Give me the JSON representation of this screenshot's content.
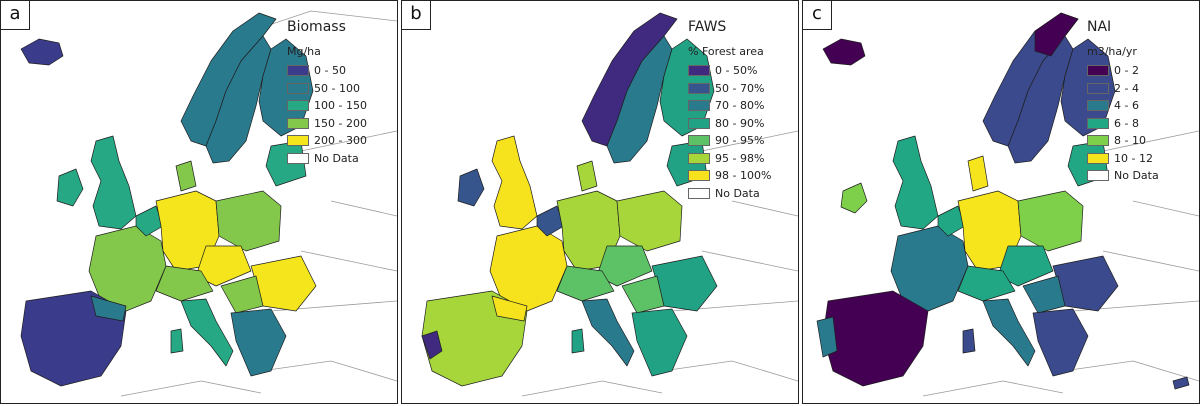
{
  "panels": [
    {
      "letter": "a",
      "title": "Biomass",
      "unit": "Mg/ha",
      "classes": [
        {
          "label": "0 - 50",
          "color": "#3b3b8c"
        },
        {
          "label": "50 - 100",
          "color": "#2a7a8e"
        },
        {
          "label": "100 - 150",
          "color": "#26a884"
        },
        {
          "label": "150 - 200",
          "color": "#83c84b"
        },
        {
          "label": "200 - 300",
          "color": "#f4e51c"
        },
        {
          "label": "No Data",
          "color": "#ffffff"
        }
      ]
    },
    {
      "letter": "b",
      "title": "FAWS",
      "unit": "% Forest area",
      "classes": [
        {
          "label": "0 - 50%",
          "color": "#402a80"
        },
        {
          "label": "50 - 70%",
          "color": "#35558c"
        },
        {
          "label": "70 - 80%",
          "color": "#2a7a8e"
        },
        {
          "label": "80 - 90%",
          "color": "#22a285"
        },
        {
          "label": "90 - 95%",
          "color": "#5dc166"
        },
        {
          "label": "95 - 98%",
          "color": "#a6d63a"
        },
        {
          "label": "98 - 100%",
          "color": "#f6e31e"
        },
        {
          "label": "No Data",
          "color": "#ffffff"
        }
      ]
    },
    {
      "letter": "c",
      "title": "NAI",
      "unit": "m3/ha/yr",
      "classes": [
        {
          "label": "0 - 2",
          "color": "#440154"
        },
        {
          "label": "2 - 4",
          "color": "#3b4a8c"
        },
        {
          "label": "4 - 6",
          "color": "#2a7a8e"
        },
        {
          "label": "6 - 8",
          "color": "#22a785"
        },
        {
          "label": "8 - 10",
          "color": "#7ed04b"
        },
        {
          "label": "10 - 12",
          "color": "#f6e51c"
        },
        {
          "label": "No Data",
          "color": "#ffffff"
        }
      ]
    }
  ]
}
